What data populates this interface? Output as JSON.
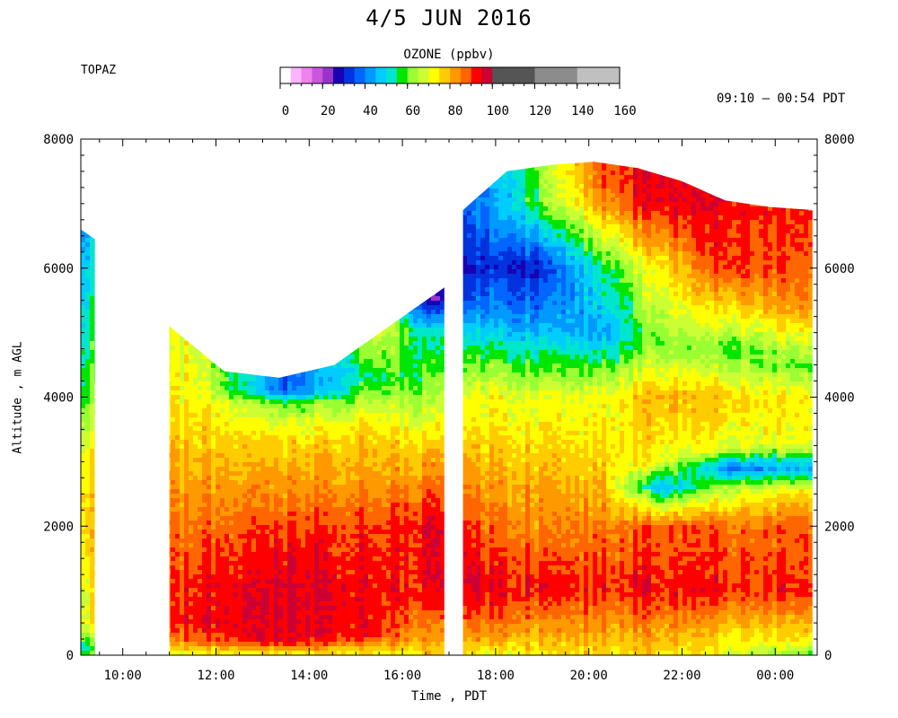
{
  "chart_data": {
    "type": "heatmap",
    "title": "4/5 JUN 2016",
    "site": "TOPAZ",
    "time_range": "09:10 – 00:54 PDT",
    "xlabel": "Time , PDT",
    "ylabel": "Altitude , m AGL",
    "x_range_hours": [
      9.1,
      24.9
    ],
    "y_range_m": [
      0,
      8000
    ],
    "x_ticks": [
      {
        "value": 10,
        "label": "10:00"
      },
      {
        "value": 12,
        "label": "12:00"
      },
      {
        "value": 14,
        "label": "14:00"
      },
      {
        "value": 16,
        "label": "16:00"
      },
      {
        "value": 18,
        "label": "18:00"
      },
      {
        "value": 20,
        "label": "20:00"
      },
      {
        "value": 22,
        "label": "22:00"
      },
      {
        "value": 24,
        "label": "00:00"
      }
    ],
    "y_ticks_left": [
      0,
      2000,
      4000,
      6000,
      8000
    ],
    "y_ticks_right": [
      0,
      2000,
      4000,
      6000,
      8000
    ],
    "colorbar": {
      "label": "OZONE (ppbv)",
      "ticks": [
        0,
        20,
        40,
        60,
        80,
        100,
        120,
        140,
        160
      ],
      "bins": [
        {
          "from": 0,
          "to": 5,
          "color": "#ffffff"
        },
        {
          "from": 5,
          "to": 10,
          "color": "#ffb3ff"
        },
        {
          "from": 10,
          "to": 15,
          "color": "#ee82ee"
        },
        {
          "from": 15,
          "to": 20,
          "color": "#cc55dd"
        },
        {
          "from": 20,
          "to": 25,
          "color": "#9933cc"
        },
        {
          "from": 25,
          "to": 30,
          "color": "#1a00b3"
        },
        {
          "from": 30,
          "to": 35,
          "color": "#0033dd"
        },
        {
          "from": 35,
          "to": 40,
          "color": "#0066ff"
        },
        {
          "from": 40,
          "to": 45,
          "color": "#0099ff"
        },
        {
          "from": 45,
          "to": 50,
          "color": "#00ccff"
        },
        {
          "from": 50,
          "to": 55,
          "color": "#00e6cc"
        },
        {
          "from": 55,
          "to": 60,
          "color": "#00e600"
        },
        {
          "from": 60,
          "to": 65,
          "color": "#99ff33"
        },
        {
          "from": 65,
          "to": 70,
          "color": "#ccff33"
        },
        {
          "from": 70,
          "to": 75,
          "color": "#ffff00"
        },
        {
          "from": 75,
          "to": 80,
          "color": "#ffcc00"
        },
        {
          "from": 80,
          "to": 85,
          "color": "#ff9900"
        },
        {
          "from": 85,
          "to": 90,
          "color": "#ff6600"
        },
        {
          "from": 90,
          "to": 95,
          "color": "#ff0000"
        },
        {
          "from": 95,
          "to": 100,
          "color": "#cc0033"
        },
        {
          "from": 100,
          "to": 120,
          "color": "#555555"
        },
        {
          "from": 120,
          "to": 140,
          "color": "#8c8c8c"
        },
        {
          "from": 140,
          "to": 160,
          "color": "#c0c0c0"
        }
      ]
    },
    "segments": [
      {
        "start_h": 9.1,
        "end_h": 9.4,
        "top_m": [
          6600,
          6450
        ]
      },
      {
        "start_h": 11.0,
        "end_h": 16.9,
        "top_m": [
          5100,
          4400,
          4300,
          4500,
          5100,
          5700
        ]
      },
      {
        "start_h": 17.3,
        "end_h": 24.8,
        "top_m": [
          6900,
          7500,
          7600,
          7650,
          7550,
          7350,
          7050,
          6950,
          6900
        ]
      }
    ],
    "profiles": [
      {
        "time_h": 9.25,
        "points": [
          [
            0,
            60
          ],
          [
            150,
            58
          ],
          [
            500,
            72
          ],
          [
            2000,
            78
          ],
          [
            3000,
            75
          ],
          [
            4000,
            60
          ],
          [
            5000,
            55
          ],
          [
            6000,
            50
          ],
          [
            6500,
            45
          ]
        ]
      },
      {
        "time_h": 11.5,
        "points": [
          [
            0,
            70
          ],
          [
            200,
            86
          ],
          [
            500,
            94
          ],
          [
            1000,
            92
          ],
          [
            2000,
            86
          ],
          [
            3000,
            80
          ],
          [
            4000,
            74
          ],
          [
            4800,
            72
          ]
        ]
      },
      {
        "time_h": 13.5,
        "points": [
          [
            0,
            70
          ],
          [
            200,
            95
          ],
          [
            1000,
            96
          ],
          [
            1800,
            92
          ],
          [
            2500,
            84
          ],
          [
            3300,
            76
          ],
          [
            3900,
            60
          ],
          [
            4100,
            36
          ]
        ]
      },
      {
        "time_h": 15.5,
        "points": [
          [
            0,
            72
          ],
          [
            300,
            92
          ],
          [
            1000,
            93
          ],
          [
            2000,
            90
          ],
          [
            2800,
            82
          ],
          [
            3500,
            76
          ],
          [
            4300,
            58
          ],
          [
            5000,
            70
          ]
        ]
      },
      {
        "time_h": 16.6,
        "points": [
          [
            0,
            75
          ],
          [
            1000,
            92
          ],
          [
            2000,
            94
          ],
          [
            3000,
            80
          ],
          [
            4000,
            62
          ],
          [
            5000,
            50
          ],
          [
            5500,
            22
          ]
        ]
      },
      {
        "time_h": 17.8,
        "points": [
          [
            0,
            70
          ],
          [
            300,
            84
          ],
          [
            1000,
            96
          ],
          [
            2000,
            88
          ],
          [
            3000,
            80
          ],
          [
            4000,
            72
          ],
          [
            4600,
            60
          ],
          [
            5200,
            44
          ],
          [
            6000,
            32
          ],
          [
            6800,
            42
          ]
        ]
      },
      {
        "time_h": 19.0,
        "points": [
          [
            0,
            74
          ],
          [
            1000,
            93
          ],
          [
            2000,
            84
          ],
          [
            3000,
            78
          ],
          [
            4000,
            70
          ],
          [
            4500,
            58
          ],
          [
            5200,
            42
          ],
          [
            6000,
            30
          ],
          [
            7000,
            60
          ],
          [
            7600,
            64
          ]
        ]
      },
      {
        "time_h": 20.3,
        "points": [
          [
            0,
            76
          ],
          [
            1000,
            92
          ],
          [
            2000,
            86
          ],
          [
            3000,
            77
          ],
          [
            4000,
            72
          ],
          [
            4400,
            62
          ],
          [
            5000,
            44
          ],
          [
            6000,
            56
          ],
          [
            7000,
            84
          ],
          [
            7500,
            90
          ]
        ]
      },
      {
        "time_h": 21.5,
        "points": [
          [
            0,
            76
          ],
          [
            1000,
            93
          ],
          [
            2000,
            88
          ],
          [
            2400,
            62
          ],
          [
            2600,
            44
          ],
          [
            3000,
            72
          ],
          [
            4000,
            80
          ],
          [
            4800,
            62
          ],
          [
            6000,
            74
          ],
          [
            7000,
            95
          ]
        ]
      },
      {
        "time_h": 23.0,
        "points": [
          [
            0,
            70
          ],
          [
            1000,
            92
          ],
          [
            2000,
            88
          ],
          [
            2600,
            66
          ],
          [
            2900,
            40
          ],
          [
            3200,
            70
          ],
          [
            4000,
            78
          ],
          [
            4700,
            60
          ],
          [
            6000,
            92
          ],
          [
            6900,
            94
          ]
        ]
      },
      {
        "time_h": 24.6,
        "points": [
          [
            0,
            58
          ],
          [
            200,
            72
          ],
          [
            1000,
            90
          ],
          [
            2000,
            86
          ],
          [
            2500,
            76
          ],
          [
            2900,
            44
          ],
          [
            3300,
            70
          ],
          [
            4000,
            72
          ],
          [
            4500,
            58
          ],
          [
            5500,
            84
          ],
          [
            6900,
            90
          ]
        ]
      }
    ]
  }
}
